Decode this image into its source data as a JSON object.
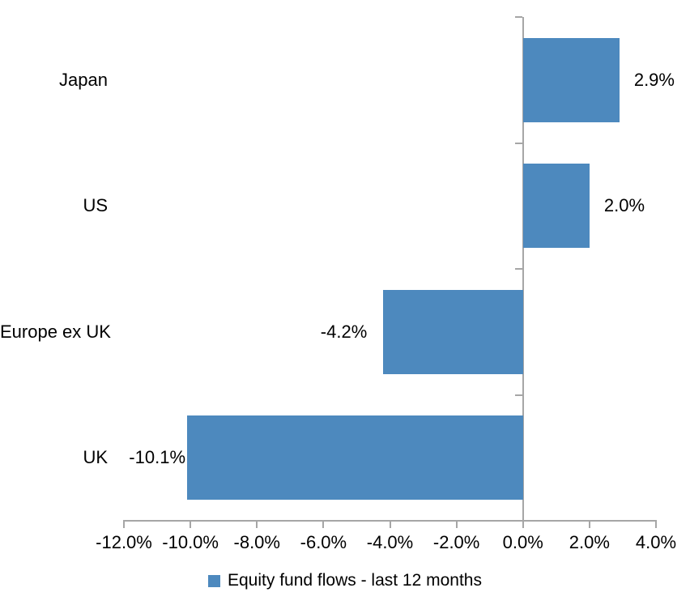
{
  "chart_data": {
    "type": "bar",
    "orientation": "horizontal",
    "title": "",
    "xlabel": "",
    "ylabel": "",
    "categories": [
      "Japan",
      "US",
      "Europe ex UK",
      "UK"
    ],
    "values": [
      2.9,
      2.0,
      -4.2,
      -10.1
    ],
    "data_labels": [
      "2.9%",
      "2.0%",
      "-4.2%",
      "-10.1%"
    ],
    "series_name": "Equity fund flows - last 12 months",
    "xlim": [
      -12,
      4
    ],
    "x_ticks": [
      -12,
      -10,
      -8,
      -6,
      -4,
      -2,
      0,
      2,
      4
    ],
    "x_tick_labels": [
      "-12.0%",
      "-10.0%",
      "-8.0%",
      "-6.0%",
      "-4.0%",
      "-2.0%",
      "0.0%",
      "2.0%",
      "4.0%"
    ],
    "grid": false,
    "legend_position": "bottom",
    "bar_color": "#4D89BE",
    "axis_color": "#A6A6A6",
    "text_color": "#000000"
  },
  "legend": {
    "items": [
      {
        "label": "Equity fund flows - last 12 months",
        "swatch_color": "#4D89BE"
      }
    ]
  }
}
